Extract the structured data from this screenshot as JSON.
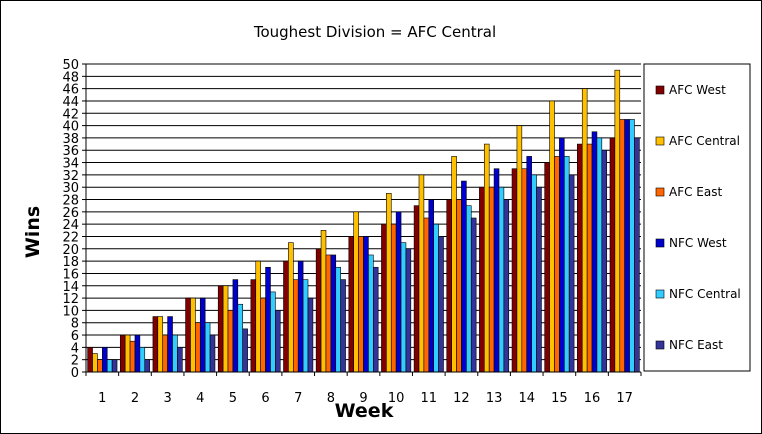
{
  "chart_data": {
    "type": "bar",
    "title": "Toughest Division = AFC Central",
    "xlabel": "Week",
    "ylabel": "Wins",
    "ylim": [
      0,
      50
    ],
    "ytick_step": 2,
    "grid": true,
    "legend_position": "right",
    "categories": [
      "1",
      "2",
      "3",
      "4",
      "5",
      "6",
      "7",
      "8",
      "9",
      "10",
      "11",
      "12",
      "13",
      "14",
      "15",
      "16",
      "17"
    ],
    "series": [
      {
        "name": "AFC West",
        "color": "#800000",
        "values": [
          4,
          6,
          9,
          12,
          14,
          15,
          18,
          20,
          22,
          24,
          27,
          28,
          30,
          33,
          34,
          37,
          38
        ]
      },
      {
        "name": "AFC Central",
        "color": "#FFC000",
        "values": [
          3,
          6,
          9,
          12,
          14,
          18,
          21,
          23,
          26,
          29,
          32,
          35,
          37,
          40,
          44,
          46,
          49
        ]
      },
      {
        "name": "AFC East",
        "color": "#FF6600",
        "values": [
          2,
          5,
          6,
          8,
          10,
          12,
          15,
          19,
          22,
          24,
          25,
          28,
          30,
          33,
          35,
          37,
          41
        ]
      },
      {
        "name": "NFC West",
        "color": "#0000CC",
        "values": [
          4,
          6,
          9,
          12,
          15,
          17,
          18,
          19,
          22,
          26,
          28,
          31,
          33,
          35,
          38,
          39,
          41
        ]
      },
      {
        "name": "NFC Central",
        "color": "#33CCFF",
        "values": [
          2,
          4,
          6,
          8,
          11,
          13,
          15,
          17,
          19,
          21,
          24,
          27,
          30,
          32,
          35,
          38,
          41
        ]
      },
      {
        "name": "NFC East",
        "color": "#333399",
        "values": [
          2,
          2,
          4,
          6,
          7,
          10,
          12,
          15,
          17,
          20,
          22,
          25,
          28,
          30,
          32,
          36,
          38
        ]
      }
    ]
  }
}
